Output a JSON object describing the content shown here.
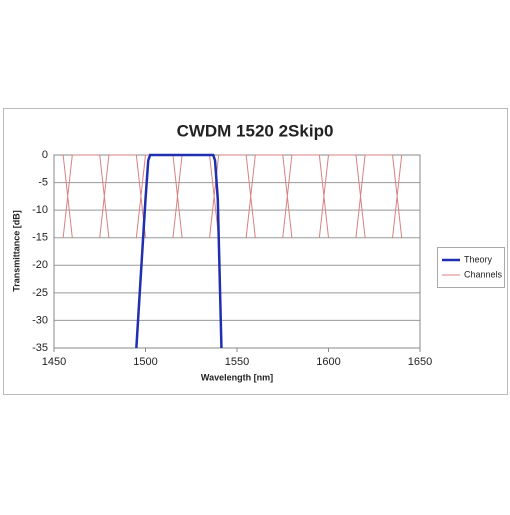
{
  "chart_data": {
    "type": "line",
    "title": "CWDM 1520 2Skip0",
    "x_label": "Wavelength [nm]",
    "y_label": "Transmittance [dB]",
    "xlim": [
      1450,
      1650
    ],
    "xticks": [
      1450,
      1500,
      1550,
      1600,
      1650
    ],
    "ylim": [
      -35,
      0
    ],
    "yticks": [
      0,
      -5,
      -10,
      -15,
      -20,
      -25,
      -30,
      -35
    ],
    "grid": true,
    "legend": "right",
    "series": [
      {
        "name": "Theory",
        "color": "#1f2fb0",
        "x": [
          1495,
          1500,
          1501.5,
          1502.5,
          1520,
          1537,
          1538,
          1539.5,
          1541.5
        ],
        "values": [
          -35,
          -8,
          -1,
          0,
          0,
          0,
          -1,
          -8,
          -35
        ]
      },
      {
        "name": "Channels",
        "color": "#d98080",
        "x": [
          1455,
          1460,
          null,
          1455,
          1460,
          1475,
          1480,
          null,
          1475,
          1480,
          1495,
          1500,
          null,
          1495,
          1500,
          1515,
          1520,
          null,
          1515,
          1520,
          1535,
          1540,
          null,
          1535,
          1540,
          1555,
          1560,
          null,
          1555,
          1560,
          1575,
          1580,
          null,
          1575,
          1580,
          1595,
          1600,
          null,
          1595,
          1600,
          1615,
          1620,
          null,
          1615,
          1620,
          1635,
          1640,
          null,
          1635,
          1640
        ],
        "values": [
          0,
          -15,
          null,
          -15,
          0,
          0,
          -15,
          null,
          -15,
          0,
          0,
          -15,
          null,
          -15,
          0,
          0,
          -15,
          null,
          -15,
          0,
          0,
          -15,
          null,
          -15,
          0,
          0,
          -15,
          null,
          -15,
          0,
          0,
          -15,
          null,
          -15,
          0,
          0,
          -15,
          null,
          -15,
          0,
          0,
          -15,
          null,
          -15,
          0,
          0,
          -15,
          null,
          -15,
          0
        ]
      }
    ]
  }
}
